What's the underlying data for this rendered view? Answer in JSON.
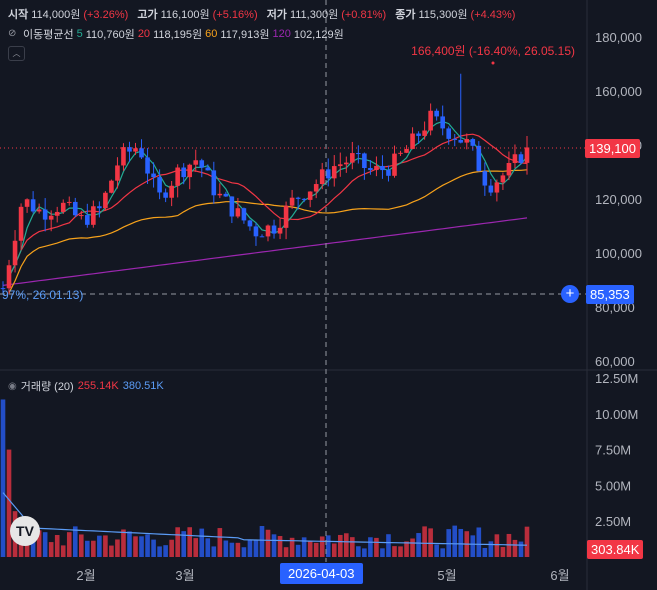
{
  "ohlc": {
    "open_label": "시작",
    "open": "114,000원",
    "open_chg": "(+3.26%)",
    "high_label": "고가",
    "high": "116,100원",
    "high_chg": "(+5.16%)",
    "low_label": "저가",
    "low": "111,300원",
    "low_chg": "(+0.81%)",
    "close_label": "종가",
    "close": "115,300원",
    "close_chg": "(+4.43%)"
  },
  "ma": {
    "label": "이동평균선",
    "p1": "5",
    "v1": "110,760원",
    "p2": "20",
    "v2": "118,195원",
    "p3": "60",
    "v3": "117,913원",
    "p4": "120",
    "v4": "102,129원"
  },
  "volume_legend": {
    "label": "거래량 (20)",
    "v1": "255.14K",
    "v2": "380.51K"
  },
  "price_axis": [
    "180,000",
    "160,000",
    "140,000",
    "120,000",
    "100,000",
    "80,000",
    "60,000"
  ],
  "volume_axis": [
    "12.50M",
    "10.00M",
    "7.50M",
    "5.00M",
    "2.50M"
  ],
  "time_axis": [
    "2월",
    "3월",
    "5월",
    "6월"
  ],
  "crosshair_date": "2026-04-03",
  "current_price": "139,100",
  "crosshair_price": "85,353",
  "current_volume": "303.84K",
  "high_note": "166,400원 (-16.40%, 26.05.15)",
  "low_note": "97%, 26.01.13)",
  "logo_text": "TV",
  "colors": {
    "up": "#f23645",
    "down": "#2962ff",
    "ma5": "#22ab94",
    "ma20": "#f23645",
    "ma60": "#f7a21b",
    "ma120": "#9c27b0",
    "bg": "#131722"
  },
  "chart_data": {
    "type": "candlestick",
    "x_start": "2026-01-13",
    "x_end": "2026-05-28",
    "price_ylim": [
      55000,
      185000
    ],
    "volume_ylim": [
      0,
      13000000
    ],
    "price_ticks": [
      60000,
      80000,
      100000,
      120000,
      140000,
      160000,
      180000
    ],
    "annotations": {
      "period_high": 166400,
      "period_low": 85353,
      "last": 139100
    },
    "approx_close_path": [
      87000,
      120000,
      115000,
      118000,
      112000,
      116000,
      135000,
      140000,
      120000,
      130000,
      135000,
      122000,
      115000,
      108000,
      110000,
      120000,
      125000,
      132000,
      135000,
      130000,
      132000,
      140000,
      150000,
      145000,
      140000,
      125000,
      130000,
      139100
    ],
    "moving_averages": [
      {
        "name": "5",
        "last": 110760
      },
      {
        "name": "20",
        "last": 118195
      },
      {
        "name": "60",
        "last": 117913
      },
      {
        "name": "120",
        "last": 102129
      }
    ]
  }
}
